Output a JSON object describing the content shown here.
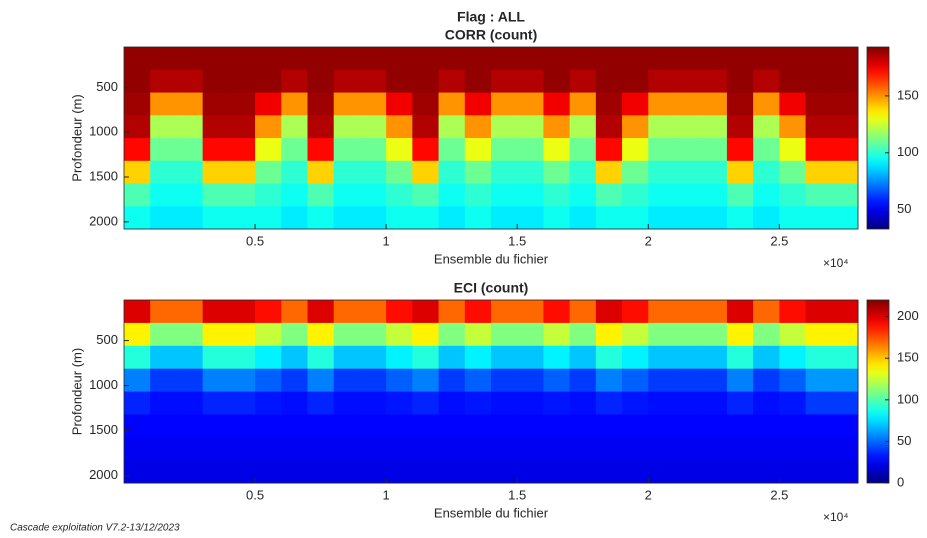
{
  "title": "Flag : ALL",
  "footer": "Cascade exploitation V7.2-13/12/2023",
  "chart_data": [
    {
      "type": "heatmap",
      "title": "CORR (count)",
      "xlabel": "Ensemble du fichier",
      "ylabel": "Profondeur (m)",
      "x_multiplier": "×10⁴",
      "colormap": "jet",
      "y_reversed": true,
      "xlim": [
        0,
        28000
      ],
      "ylim": [
        50,
        2080
      ],
      "xticks": [
        {
          "value": 5000,
          "label": "0.5"
        },
        {
          "value": 10000,
          "label": "1"
        },
        {
          "value": 15000,
          "label": "1.5"
        },
        {
          "value": 20000,
          "label": "2"
        },
        {
          "value": 25000,
          "label": "2.5"
        }
      ],
      "yticks": [
        500,
        1000,
        1500,
        2000
      ],
      "clim": [
        33,
        193
      ],
      "cticks": [
        50,
        100,
        150
      ],
      "x": [
        500,
        1500,
        2500,
        3500,
        4500,
        5500,
        6500,
        7500,
        8500,
        9500,
        10500,
        11500,
        12500,
        13500,
        14500,
        15500,
        16500,
        17500,
        18500,
        19500,
        20500,
        21500,
        22500,
        23500,
        24500,
        25500,
        26500,
        27500
      ],
      "y": [
        177,
        431,
        685,
        939,
        1193,
        1446,
        1700,
        1954
      ],
      "z": [
        [
          190,
          190,
          190,
          190,
          190,
          190,
          190,
          190,
          190,
          190,
          190,
          190,
          190,
          190,
          190,
          190,
          190,
          190,
          190,
          190,
          190,
          190,
          190,
          190,
          190,
          190,
          190,
          190
        ],
        [
          190,
          185,
          185,
          190,
          190,
          190,
          185,
          190,
          185,
          185,
          190,
          190,
          185,
          190,
          185,
          185,
          190,
          185,
          190,
          190,
          185,
          185,
          185,
          190,
          185,
          190,
          190,
          190
        ],
        [
          188,
          150,
          150,
          188,
          188,
          175,
          150,
          188,
          150,
          150,
          175,
          188,
          150,
          175,
          150,
          150,
          175,
          150,
          188,
          175,
          150,
          150,
          150,
          188,
          150,
          175,
          188,
          188
        ],
        [
          185,
          120,
          120,
          185,
          185,
          150,
          120,
          185,
          120,
          120,
          150,
          185,
          120,
          150,
          120,
          120,
          150,
          120,
          185,
          150,
          120,
          120,
          120,
          185,
          120,
          150,
          185,
          185
        ],
        [
          172,
          110,
          110,
          172,
          172,
          130,
          110,
          172,
          110,
          110,
          130,
          172,
          110,
          130,
          110,
          110,
          130,
          110,
          172,
          130,
          110,
          110,
          110,
          172,
          110,
          130,
          172,
          172
        ],
        [
          140,
          100,
          100,
          140,
          140,
          110,
          100,
          140,
          100,
          100,
          110,
          140,
          100,
          110,
          100,
          100,
          110,
          100,
          140,
          110,
          100,
          100,
          100,
          140,
          100,
          110,
          140,
          140
        ],
        [
          105,
          95,
          95,
          105,
          105,
          100,
          95,
          105,
          95,
          95,
          100,
          105,
          95,
          100,
          95,
          95,
          100,
          95,
          105,
          100,
          95,
          95,
          95,
          105,
          95,
          100,
          105,
          105
        ],
        [
          95,
          90,
          90,
          95,
          95,
          95,
          90,
          95,
          90,
          90,
          95,
          95,
          90,
          95,
          90,
          90,
          95,
          90,
          95,
          95,
          90,
          90,
          90,
          95,
          90,
          95,
          95,
          95
        ]
      ]
    },
    {
      "type": "heatmap",
      "title": "ECI (count)",
      "xlabel": "Ensemble du fichier",
      "ylabel": "Profondeur (m)",
      "x_multiplier": "×10⁴",
      "colormap": "jet",
      "y_reversed": true,
      "xlim": [
        0,
        28000
      ],
      "ylim": [
        50,
        2080
      ],
      "xticks": [
        {
          "value": 5000,
          "label": "0.5"
        },
        {
          "value": 10000,
          "label": "1"
        },
        {
          "value": 15000,
          "label": "1.5"
        },
        {
          "value": 20000,
          "label": "2"
        },
        {
          "value": 25000,
          "label": "2.5"
        }
      ],
      "yticks": [
        500,
        1000,
        1500,
        2000
      ],
      "clim": [
        0,
        220
      ],
      "cticks": [
        0,
        50,
        100,
        150,
        200
      ],
      "x": [
        500,
        1500,
        2500,
        3500,
        4500,
        5500,
        6500,
        7500,
        8500,
        9500,
        10500,
        11500,
        12500,
        13500,
        14500,
        15500,
        16500,
        17500,
        18500,
        19500,
        20500,
        21500,
        22500,
        23500,
        24500,
        25500,
        26500,
        27500
      ],
      "y": [
        177,
        431,
        685,
        939,
        1193,
        1446,
        1700,
        1954
      ],
      "z": [
        [
          200,
          170,
          170,
          200,
          200,
          190,
          170,
          200,
          170,
          170,
          190,
          200,
          170,
          190,
          170,
          170,
          190,
          170,
          200,
          190,
          170,
          170,
          170,
          200,
          170,
          190,
          200,
          200
        ],
        [
          140,
          110,
          110,
          140,
          140,
          125,
          110,
          140,
          110,
          110,
          125,
          140,
          110,
          125,
          110,
          110,
          125,
          110,
          140,
          125,
          110,
          110,
          110,
          140,
          110,
          125,
          140,
          140
        ],
        [
          90,
          70,
          70,
          90,
          90,
          80,
          70,
          90,
          70,
          70,
          80,
          90,
          70,
          80,
          70,
          70,
          80,
          70,
          90,
          80,
          70,
          70,
          70,
          90,
          70,
          80,
          90,
          90
        ],
        [
          55,
          40,
          40,
          55,
          55,
          48,
          40,
          55,
          40,
          40,
          48,
          55,
          40,
          48,
          40,
          40,
          48,
          40,
          55,
          48,
          40,
          40,
          40,
          55,
          40,
          48,
          60,
          60
        ],
        [
          35,
          30,
          30,
          35,
          35,
          32,
          30,
          35,
          30,
          30,
          32,
          35,
          30,
          32,
          30,
          30,
          32,
          30,
          35,
          32,
          30,
          30,
          30,
          35,
          30,
          32,
          40,
          40
        ],
        [
          28,
          28,
          28,
          28,
          28,
          28,
          28,
          28,
          28,
          28,
          28,
          28,
          28,
          28,
          28,
          28,
          28,
          28,
          28,
          28,
          28,
          28,
          28,
          28,
          28,
          28,
          28,
          28
        ],
        [
          25,
          25,
          25,
          25,
          25,
          25,
          25,
          25,
          25,
          25,
          25,
          25,
          25,
          25,
          25,
          25,
          25,
          25,
          25,
          25,
          25,
          25,
          25,
          25,
          25,
          25,
          25,
          25
        ],
        [
          22,
          22,
          22,
          22,
          22,
          22,
          22,
          22,
          22,
          22,
          22,
          22,
          22,
          22,
          22,
          22,
          22,
          22,
          22,
          22,
          22,
          22,
          22,
          22,
          22,
          22,
          22,
          22
        ]
      ]
    }
  ]
}
